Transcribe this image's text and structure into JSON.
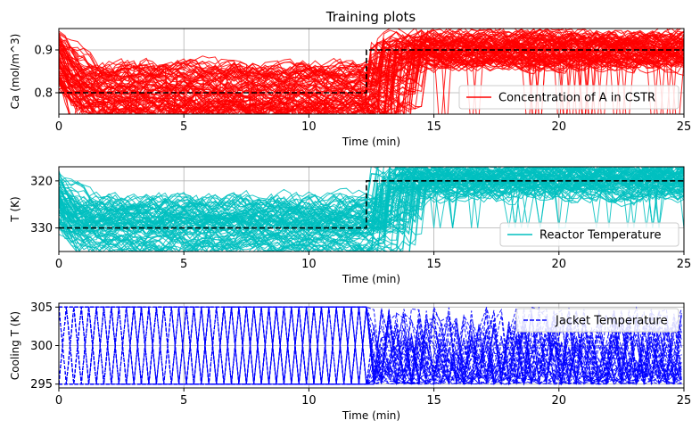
{
  "figure": {
    "title": "Training plots"
  },
  "chart_data": [
    {
      "type": "line",
      "xlabel": "Time (min)",
      "ylabel": "Ca (mol/m^3)",
      "xlim": [
        0,
        25
      ],
      "ylim": [
        0.75,
        0.95
      ],
      "y_ticks": [
        0.8,
        0.9
      ],
      "x_ticks": [
        0,
        5,
        10,
        15,
        20,
        25
      ],
      "grid": true,
      "legend_position": "lower-right",
      "series": [
        {
          "name": "Concentration of A in CSTR",
          "color": "#ff0000",
          "style": "solid",
          "kind": "training-traces"
        },
        {
          "name": "",
          "color": "#000000",
          "style": "dashed",
          "kind": "setpoint",
          "x": [
            0,
            12.3,
            12.3,
            25
          ],
          "y": [
            0.8,
            0.8,
            0.9,
            0.9
          ]
        }
      ]
    },
    {
      "type": "line",
      "xlabel": "Time (min)",
      "ylabel": "T (K)",
      "xlim": [
        0,
        25
      ],
      "ylim": [
        335,
        317
      ],
      "y_inverted": true,
      "y_ticks": [
        320,
        330
      ],
      "x_ticks": [
        0,
        5,
        10,
        15,
        20,
        25
      ],
      "grid": true,
      "legend_position": "lower-right",
      "series": [
        {
          "name": "Reactor Temperature",
          "color": "#00bfbf",
          "style": "solid",
          "kind": "training-traces"
        },
        {
          "name": "",
          "color": "#000000",
          "style": "dashed",
          "kind": "setpoint",
          "x": [
            0,
            12.3,
            12.3,
            25
          ],
          "y": [
            330,
            330,
            320,
            320
          ]
        }
      ]
    },
    {
      "type": "line",
      "xlabel": "Time (min)",
      "ylabel": "Cooling T (K)",
      "xlim": [
        0,
        25
      ],
      "ylim": [
        294.5,
        305.5
      ],
      "y_ticks": [
        295,
        300,
        305
      ],
      "x_ticks": [
        0,
        5,
        10,
        15,
        20,
        25
      ],
      "grid": true,
      "legend_position": "upper-right",
      "series": [
        {
          "name": "Jacket Temperature",
          "color": "#0000ff",
          "style": "dashed",
          "kind": "training-traces"
        }
      ]
    }
  ]
}
